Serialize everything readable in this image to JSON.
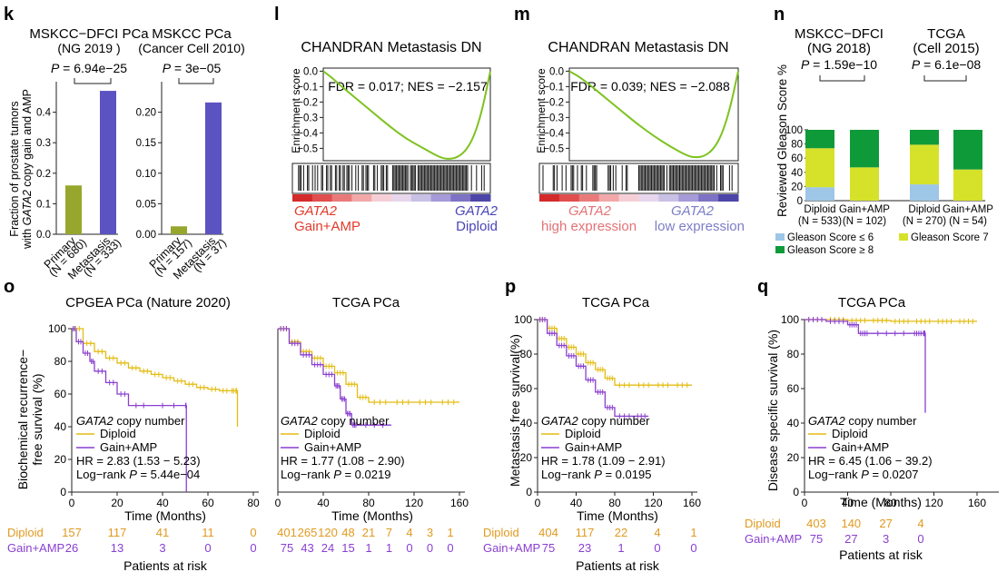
{
  "colors": {
    "olive": "#97a72e",
    "violet": "#5b53c2",
    "green_line": "#7dc31f",
    "red_label": "#e23a2a",
    "blue_label": "#4a45b8",
    "pink_label": "#e47276",
    "lavender_label": "#7c7ec8",
    "yellow_km": "#e3bc12",
    "purple_km": "#8a3fd0",
    "orange_risk": "#e09a1f",
    "purple_risk": "#8a3fd0",
    "gleason_le6": "#9ec6e6",
    "gleason7": "#d6e12a",
    "gleason_ge8": "#0f9a3a"
  },
  "panel_letters": {
    "k": "k",
    "l": "l",
    "m": "m",
    "n": "n",
    "o": "o",
    "p": "p",
    "q": "q"
  },
  "k": {
    "ylabel_1": "Fraction of prostate tumors",
    "ylabel_2_italic": "GATA2",
    "ylabel_2_pre": "with ",
    "ylabel_2_post": " copy gain and AMP",
    "charts": [
      {
        "title": "MSKCC−DFCI PCa",
        "subtitle": "(NG 2019 )",
        "p_label": "P",
        "p_value": " = 6.94e−25",
        "ticks": [
          "0.0",
          "0.1",
          "0.2",
          "0.3",
          "0.4"
        ],
        "tick_values": [
          0,
          0.1,
          0.2,
          0.3,
          0.4
        ],
        "ylim": [
          0,
          0.5
        ],
        "cats": [
          {
            "name": "Primary",
            "n": "(N = 680)"
          },
          {
            "name": "Metastasis",
            "n": "(N = 333)"
          }
        ]
      },
      {
        "title": "MSKCC PCa",
        "subtitle": "(Cancer Cell 2010)",
        "p_label": "P",
        "p_value": " = 3e−05",
        "ticks": [
          "0.00",
          "0.05",
          "0.10",
          "0.15",
          "0.20"
        ],
        "tick_values": [
          0,
          0.05,
          0.1,
          0.15,
          0.2
        ],
        "ylim": [
          0,
          0.25
        ],
        "cats": [
          {
            "name": "Primary",
            "n": "(N = 157)"
          },
          {
            "name": "Metastasis",
            "n": "(N = 37)"
          }
        ]
      }
    ]
  },
  "gsea": [
    {
      "title": "CHANDRAN Metastasis DN",
      "ylabel": "Enrichment score",
      "stat": "FDR = 0.017; NES = −2.157",
      "ticks": [
        "0.0",
        "−0.1",
        "−0.2",
        "−0.3",
        "−0.4",
        "−0.5"
      ],
      "left_italic": "GATA2",
      "left_sub": "Gain+AMP",
      "right_italic": "GATA2",
      "right_sub": "Diploid"
    },
    {
      "title": "CHANDRAN Metastasis DN",
      "ylabel": "Enrichment score",
      "stat": "FDR = 0.039; NES = −2.088",
      "ticks": [
        "0.0",
        "−0.1",
        "−0.2",
        "−0.3",
        "−0.4",
        "−0.5"
      ],
      "left_italic": "GATA2",
      "left_sub": "high expression",
      "right_italic": "GATA2",
      "right_sub": "low expression"
    }
  ],
  "n": {
    "ylabel": "Reviewed Gleason Score %",
    "ticks": [
      "0",
      "20",
      "40",
      "60",
      "80",
      "100"
    ],
    "groups": [
      {
        "title1": "MSKCC−DFCI",
        "title2": "(NG 2018)",
        "p_label": "P",
        "p_value": " = 1.59e−10"
      },
      {
        "title1": "TCGA",
        "title2": "(Cell 2015)",
        "p_label": "P",
        "p_value": " = 6.1e−08"
      }
    ],
    "cats": [
      {
        "name": "Diploid",
        "n": "(N = 533)"
      },
      {
        "name": "Gain+AMP",
        "n": "(N = 102)"
      },
      {
        "name": "Diploid",
        "n": "(N = 270)"
      },
      {
        "name": "Gain+AMP",
        "n": "(N = 54)"
      }
    ],
    "legend": [
      "Gleason Score ≤ 6",
      "Gleason Score 7",
      "Gleason Score ≥ 8"
    ]
  },
  "km_common": {
    "legend_italic": "GATA2",
    "legend_title": " copy number",
    "diploid": "Diploid",
    "gain": "Gain+AMP",
    "xlabel": "Time (Months)",
    "risk_label": "Patients at risk",
    "risk_diploid": "Diploid",
    "risk_gain": "Gain+AMP",
    "p_label": "P"
  },
  "o": {
    "ylabel1": "Biochemical recurrence−",
    "ylabel2": "free survival (%)",
    "yticks": [
      "0",
      "20",
      "40",
      "60",
      "80",
      "100"
    ],
    "left": {
      "title": "CPGEA PCa (Nature 2020)",
      "xticks": [
        "0",
        "20",
        "40",
        "60",
        "80"
      ],
      "hr": "HR = 2.83 (1.53 − 5.23)",
      "logrank": "Log−rank ",
      "p_value": " = 5.44e−04",
      "risk_d": [
        "157",
        "117",
        "41",
        "11",
        "0"
      ],
      "risk_g": [
        "26",
        "13",
        "3",
        "0",
        "0"
      ]
    },
    "right": {
      "title": "TCGA PCa",
      "xticks": [
        "0",
        "40",
        "80",
        "120",
        "160"
      ],
      "hr": "HR = 1.77 (1.08 − 2.90)",
      "logrank": "Log−rank ",
      "p_value": " = 0.0219",
      "risk_d": [
        "401",
        "265",
        "120",
        "48",
        "21",
        "7",
        "4",
        "3",
        "1"
      ],
      "risk_g": [
        "75",
        "43",
        "24",
        "15",
        "1",
        "1",
        "0",
        "0",
        "0"
      ]
    }
  },
  "p": {
    "title": "TCGA PCa",
    "ylabel": "Metastasis free survival(%)",
    "yticks": [
      "0",
      "20",
      "40",
      "60",
      "80",
      "100"
    ],
    "xticks": [
      "0",
      "40",
      "80",
      "120",
      "160"
    ],
    "hr": "HR = 1.78 (1.09 − 2.91)",
    "logrank": "Log−rank ",
    "p_value": " = 0.0195",
    "risk_d": [
      "404",
      "117",
      "22",
      "4",
      "1"
    ],
    "risk_g": [
      "75",
      "23",
      "1",
      "0",
      "0"
    ]
  },
  "q": {
    "title": "TCGA PCa",
    "ylabel": "Disease specific survival (%)",
    "yticks": [
      "0",
      "20",
      "40",
      "60",
      "80",
      "100"
    ],
    "xticks": [
      "0",
      "40",
      "80",
      "120",
      "160"
    ],
    "hr": "HR = 6.45 (1.06 − 39.2)",
    "logrank": "Log−rank ",
    "p_value": " = 0.0207",
    "risk_d": [
      "403",
      "140",
      "27",
      "4"
    ],
    "risk_g": [
      "75",
      "27",
      "3",
      "0"
    ]
  },
  "chart_data": [
    {
      "type": "bar",
      "title": "MSKCC−DFCI PCa (NG 2019 )",
      "ylabel": "Fraction of prostate tumors with GATA2 copy gain and AMP",
      "categories": [
        "Primary (N = 680)",
        "Metastasis (N = 333)"
      ],
      "values": [
        0.16,
        0.47
      ],
      "ylim": [
        0,
        0.5
      ],
      "annotation": "P = 6.94e−25"
    },
    {
      "type": "bar",
      "title": "MSKCC PCa (Cancer Cell 2010)",
      "categories": [
        "Primary (N = 157)",
        "Metastasis (N = 37)"
      ],
      "values": [
        0.013,
        0.216
      ],
      "ylim": [
        0,
        0.25
      ],
      "annotation": "P = 3e−05"
    },
    {
      "type": "line",
      "title": "CHANDRAN Metastasis DN",
      "ylabel": "Enrichment score",
      "annotation": "FDR = 0.017; NES = −2.157",
      "x": [
        0,
        0.05,
        0.1,
        0.2,
        0.3,
        0.4,
        0.5,
        0.6,
        0.7,
        0.75,
        0.8,
        0.85,
        0.9,
        0.95,
        1.0
      ],
      "y": [
        0.0,
        -0.04,
        -0.09,
        -0.18,
        -0.27,
        -0.36,
        -0.44,
        -0.5,
        -0.56,
        -0.57,
        -0.56,
        -0.52,
        -0.43,
        -0.26,
        0.0
      ],
      "ylim": [
        -0.58,
        0.02
      ]
    },
    {
      "type": "line",
      "title": "CHANDRAN Metastasis DN",
      "ylabel": "Enrichment score",
      "annotation": "FDR = 0.039; NES = −2.088",
      "x": [
        0,
        0.05,
        0.1,
        0.2,
        0.3,
        0.4,
        0.5,
        0.6,
        0.7,
        0.75,
        0.8,
        0.85,
        0.9,
        0.95,
        1.0
      ],
      "y": [
        0.0,
        -0.03,
        -0.07,
        -0.16,
        -0.25,
        -0.34,
        -0.42,
        -0.49,
        -0.55,
        -0.56,
        -0.55,
        -0.51,
        -0.42,
        -0.25,
        0.0
      ],
      "ylim": [
        -0.58,
        0.02
      ]
    },
    {
      "type": "bar",
      "ylabel": "Reviewed Gleason Score %",
      "categories": [
        "Diploid (N = 533)",
        "Gain+AMP (N = 102)",
        "Diploid (N = 270)",
        "Gain+AMP (N = 54)"
      ],
      "series": [
        {
          "name": "Gleason Score ≤ 6",
          "values": [
            19,
            0,
            23,
            0
          ]
        },
        {
          "name": "Gleason Score 7",
          "values": [
            55,
            47,
            56,
            44
          ]
        },
        {
          "name": "Gleason Score ≥ 8",
          "values": [
            26,
            53,
            21,
            56
          ]
        }
      ],
      "ylim": [
        0,
        100
      ]
    },
    {
      "type": "line",
      "title": "CPGEA PCa (Nature 2020)",
      "ylabel": "Biochemical recurrence−free survival (%)",
      "xlabel": "Time (Months)",
      "xlim": [
        0,
        80
      ],
      "ylim": [
        0,
        100
      ],
      "series": [
        {
          "name": "Diploid",
          "x": [
            0,
            5,
            10,
            15,
            20,
            25,
            30,
            35,
            40,
            45,
            50,
            55,
            60,
            65,
            70,
            72,
            73
          ],
          "y": [
            100,
            91,
            86,
            82,
            79,
            76,
            74,
            72,
            70,
            68,
            66,
            64,
            63,
            62,
            62,
            62,
            40
          ]
        },
        {
          "name": "Gain+AMP",
          "x": [
            0,
            2,
            5,
            8,
            10,
            15,
            20,
            25,
            35,
            50,
            50.5
          ],
          "y": [
            100,
            92,
            85,
            80,
            74,
            67,
            60,
            53,
            53,
            53,
            0
          ]
        }
      ]
    },
    {
      "type": "line",
      "title": "TCGA PCa",
      "xlabel": "Time (Months)",
      "xlim": [
        0,
        160
      ],
      "ylim": [
        0,
        100
      ],
      "series": [
        {
          "name": "Diploid",
          "x": [
            0,
            10,
            20,
            30,
            40,
            50,
            60,
            70,
            80,
            100,
            120,
            140,
            160
          ],
          "y": [
            100,
            92,
            86,
            82,
            77,
            73,
            66,
            58,
            55,
            55,
            55,
            55,
            55
          ]
        },
        {
          "name": "Gain+AMP",
          "x": [
            0,
            10,
            20,
            30,
            40,
            50,
            55,
            60,
            65,
            70,
            100
          ],
          "y": [
            100,
            91,
            84,
            78,
            72,
            65,
            57,
            48,
            41,
            41,
            41
          ]
        }
      ]
    },
    {
      "type": "line",
      "title": "TCGA PCa",
      "ylabel": "Metastasis free survival(%)",
      "xlabel": "Time (Months)",
      "xlim": [
        0,
        160
      ],
      "ylim": [
        0,
        100
      ],
      "series": [
        {
          "name": "Diploid",
          "x": [
            0,
            10,
            20,
            30,
            40,
            50,
            60,
            70,
            80,
            100,
            120,
            140,
            160
          ],
          "y": [
            100,
            95,
            89,
            84,
            80,
            75,
            71,
            66,
            62,
            62,
            62,
            62,
            62
          ]
        },
        {
          "name": "Gain+AMP",
          "x": [
            0,
            10,
            20,
            30,
            40,
            50,
            60,
            70,
            80,
            100,
            115
          ],
          "y": [
            100,
            92,
            85,
            79,
            73,
            65,
            58,
            49,
            44,
            44,
            44
          ]
        }
      ]
    },
    {
      "type": "line",
      "title": "TCGA PCa",
      "ylabel": "Disease specific survival (%)",
      "xlabel": "Time (Months)",
      "xlim": [
        0,
        160
      ],
      "ylim": [
        0,
        100
      ],
      "series": [
        {
          "name": "Diploid",
          "x": [
            0,
            20,
            40,
            60,
            80,
            100,
            120,
            140,
            160
          ],
          "y": [
            100,
            100,
            99.5,
            99.5,
            99,
            99,
            99,
            99,
            99
          ]
        },
        {
          "name": "Gain+AMP",
          "x": [
            0,
            20,
            40,
            50,
            60,
            100,
            110,
            112
          ],
          "y": [
            100,
            99,
            97,
            92,
            92,
            92,
            92,
            46
          ]
        }
      ]
    }
  ]
}
